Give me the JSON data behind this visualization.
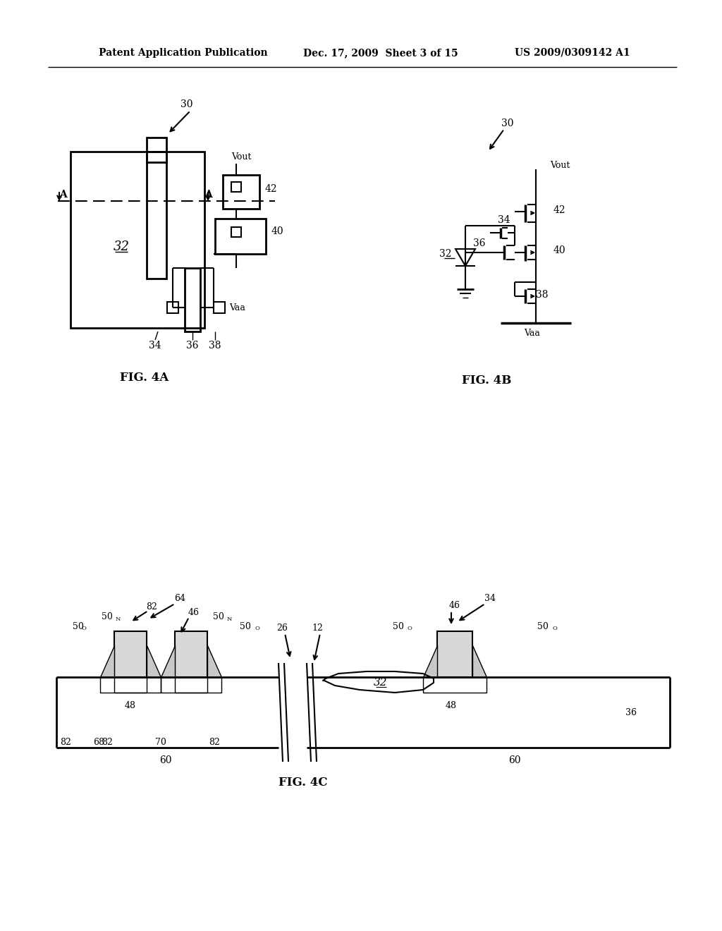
{
  "bg_color": "#ffffff",
  "header_left": "Patent Application Publication",
  "header_mid": "Dec. 17, 2009  Sheet 3 of 15",
  "header_right": "US 2009/0309142 A1",
  "fig4a_label": "FIG. 4A",
  "fig4b_label": "FIG. 4B",
  "fig4c_label": "FIG. 4C",
  "text_color": "#000000"
}
